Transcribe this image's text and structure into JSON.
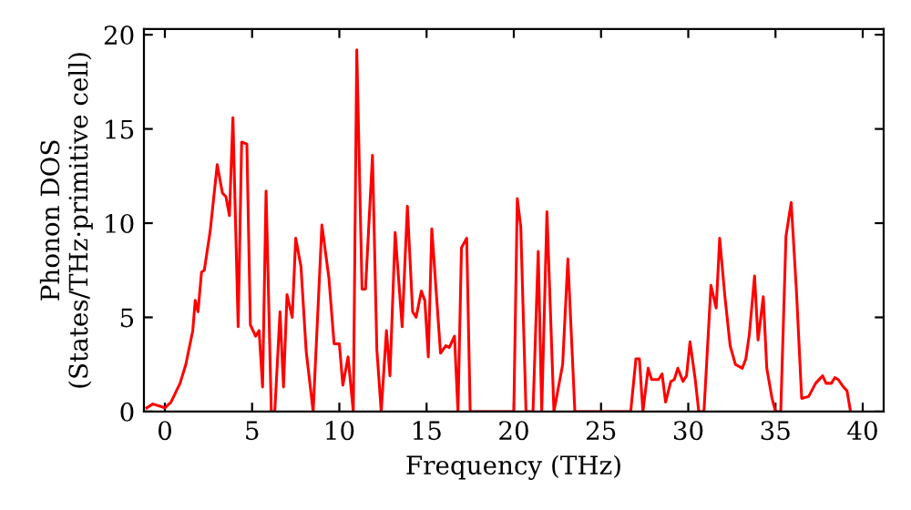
{
  "chart_data": {
    "type": "line",
    "xlabel": "Frequency (THz)",
    "ylabel": "Phonon DOS\n(States/THz·primitive cell)",
    "xlim": [
      -1.2,
      41.2
    ],
    "ylim": [
      0,
      20.3
    ],
    "xticks": [
      0,
      5,
      10,
      15,
      20,
      25,
      30,
      35,
      40
    ],
    "yticks": [
      0,
      5,
      10,
      15,
      20
    ],
    "grid": false,
    "marker": "none",
    "line_style": "solid",
    "series": [
      {
        "color": "#ff0000",
        "x": [
          -1.04,
          -0.69,
          0,
          0.35,
          0.87,
          1.2,
          1.6,
          1.74,
          1.9,
          2.1,
          2.26,
          2.6,
          3.0,
          3.3,
          3.5,
          3.7,
          3.9,
          4.2,
          4.4,
          4.7,
          4.9,
          5.2,
          5.4,
          5.6,
          5.8,
          6.1,
          6.3,
          6.6,
          6.8,
          7.0,
          7.3,
          7.5,
          7.8,
          8.1,
          8.5,
          9.0,
          9.4,
          9.7,
          10.0,
          10.2,
          10.5,
          10.8,
          11.0,
          11.3,
          11.5,
          11.9,
          12.15,
          12.4,
          12.7,
          12.9,
          13.2,
          13.6,
          13.9,
          14.2,
          14.4,
          14.7,
          14.9,
          15.1,
          15.3,
          15.8,
          16.1,
          16.3,
          16.6,
          16.8,
          17.0,
          17.3,
          17.5,
          20.0,
          20.2,
          20.4,
          20.7,
          21.1,
          21.4,
          21.6,
          21.9,
          22.3,
          22.8,
          23.1,
          23.5,
          26.7,
          27.0,
          27.2,
          27.4,
          27.7,
          27.9,
          28.3,
          28.5,
          28.7,
          29.0,
          29.2,
          29.4,
          29.7,
          29.9,
          30.1,
          30.4,
          30.6,
          30.9,
          31.3,
          31.6,
          31.8,
          32.1,
          32.4,
          32.7,
          33.1,
          33.3,
          33.5,
          33.8,
          34.0,
          34.3,
          34.5,
          34.8,
          35.0,
          35.3,
          35.6,
          35.9,
          36.2,
          36.5,
          36.9,
          37.3,
          37.7,
          37.9,
          38.2,
          38.4,
          38.6,
          38.9,
          39.1,
          39.3
        ],
        "values": [
          0.2,
          0.4,
          0.2,
          0.5,
          1.5,
          2.5,
          4.3,
          5.9,
          5.3,
          7.4,
          7.5,
          9.6,
          13.1,
          11.6,
          11.4,
          10.4,
          15.6,
          4.5,
          14.3,
          14.2,
          4.6,
          4.0,
          4.3,
          1.3,
          11.7,
          0,
          0,
          5.3,
          1.3,
          6.2,
          5.0,
          9.2,
          7.7,
          3.2,
          0,
          9.9,
          7.1,
          3.6,
          3.6,
          1.4,
          2.9,
          0,
          19.2,
          6.5,
          6.5,
          13.6,
          3.3,
          0,
          4.3,
          1.9,
          9.5,
          4.5,
          10.9,
          5.3,
          5.0,
          6.4,
          5.9,
          2.9,
          9.7,
          3.1,
          3.5,
          3.4,
          4.0,
          0,
          8.7,
          9.2,
          0,
          0,
          11.3,
          9.8,
          0,
          0,
          8.5,
          0,
          10.6,
          0,
          2.5,
          8.1,
          0,
          0,
          2.8,
          2.8,
          0,
          2.3,
          1.7,
          1.7,
          2.0,
          0.5,
          1.6,
          1.7,
          2.3,
          1.6,
          1.9,
          3.7,
          1.7,
          0,
          0,
          6.7,
          5.5,
          9.2,
          6.1,
          3.5,
          2.5,
          2.3,
          2.8,
          4.1,
          7.2,
          3.8,
          6.1,
          2.3,
          0.7,
          0,
          0,
          9.3,
          11.1,
          6.4,
          0.7,
          0.8,
          1.5,
          1.9,
          1.5,
          1.5,
          1.8,
          1.7,
          1.3,
          1.1,
          0
        ]
      }
    ]
  }
}
